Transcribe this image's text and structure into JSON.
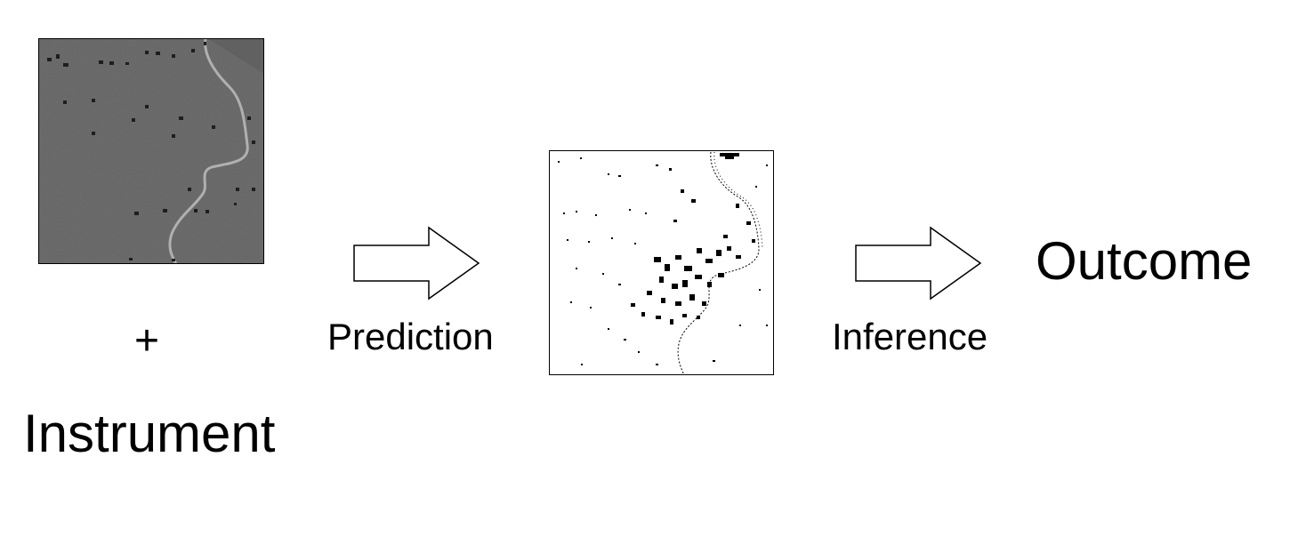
{
  "diagram": {
    "plus_sign": "+",
    "instrument_label": "Instrument",
    "prediction_label": "Prediction",
    "inference_label": "Inference",
    "outcome_label": "Outcome"
  },
  "colors": {
    "satellite_gray": "#6e6e6e",
    "river": "#b8b8b8",
    "stroke": "#000000",
    "background": "#ffffff"
  },
  "icons": {
    "prediction_arrow": "right-arrow-outline",
    "inference_arrow": "right-arrow-outline"
  }
}
